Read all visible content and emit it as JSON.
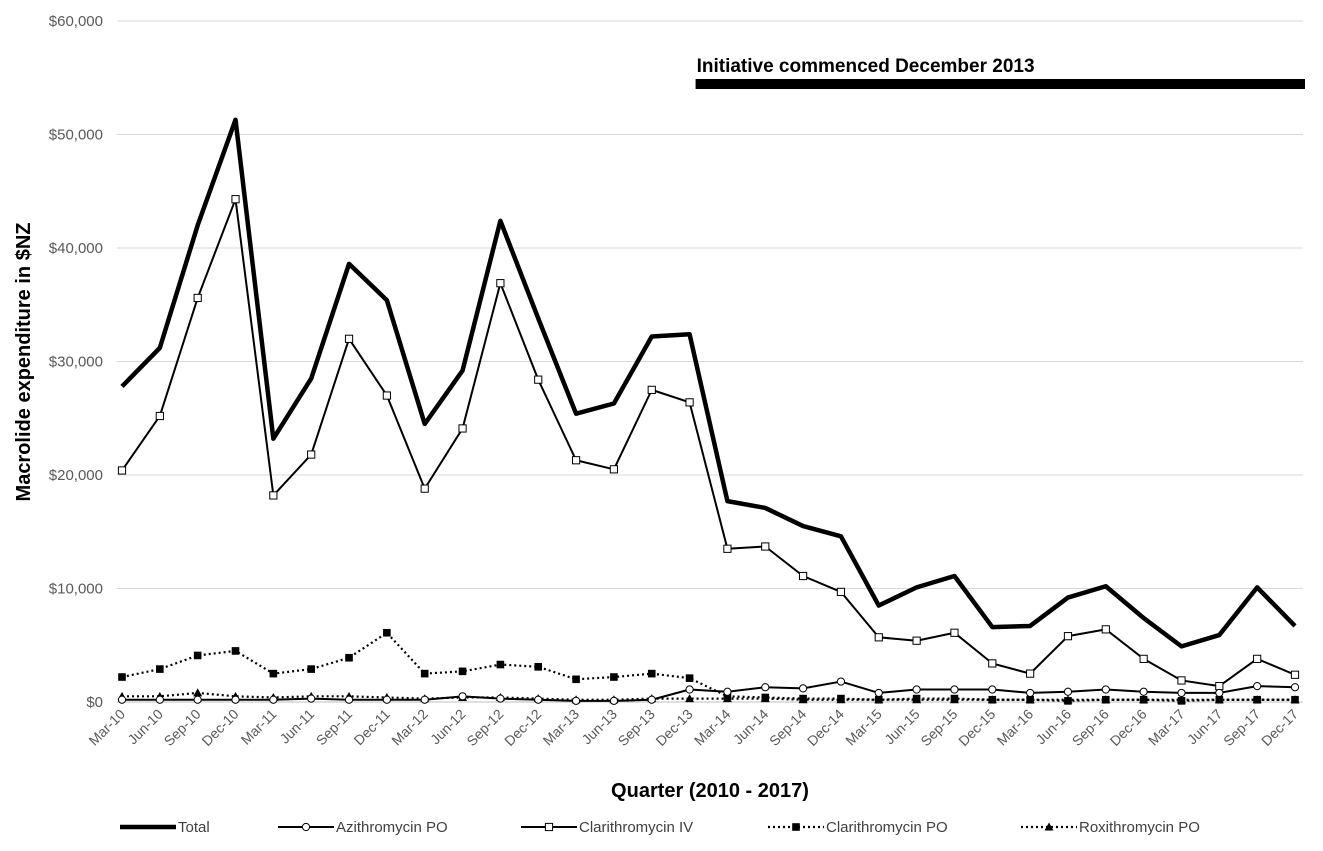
{
  "chart_data": {
    "type": "line",
    "title": "",
    "xlabel": "Quarter (2010 - 2017)",
    "ylabel": "Macrolide expenditure in $NZ",
    "ylim": [
      0,
      60000
    ],
    "yticks": [
      0,
      10000,
      20000,
      30000,
      40000,
      50000,
      60000
    ],
    "ytick_labels": [
      "$0",
      "$10,000",
      "$20,000",
      "$30,000",
      "$40,000",
      "$50,000",
      "$60,000"
    ],
    "grid": "horizontal",
    "legend_position": "bottom",
    "categories": [
      "Mar-10",
      "Jun-10",
      "Sep-10",
      "Dec-10",
      "Mar-11",
      "Jun-11",
      "Sep-11",
      "Dec-11",
      "Mar-12",
      "Jun-12",
      "Sep-12",
      "Dec-12",
      "Mar-13",
      "Jun-13",
      "Sep-13",
      "Dec-13",
      "Mar-14",
      "Jun-14",
      "Sep-14",
      "Dec-14",
      "Mar-15",
      "Jun-15",
      "Sep-15",
      "Dec-15",
      "Mar-16",
      "Jun-16",
      "Sep-16",
      "Dec-16",
      "Mar-17",
      "Jun-17",
      "Sep-17",
      "Dec-17"
    ],
    "series": [
      {
        "name": "Total",
        "style": "thick",
        "values": [
          27800,
          31200,
          42000,
          51300,
          23200,
          28500,
          38600,
          35400,
          24500,
          29200,
          42400,
          33800,
          25400,
          26300,
          32200,
          32400,
          17700,
          17100,
          15500,
          14600,
          8500,
          10100,
          11100,
          6600,
          6700,
          9200,
          10200,
          7400,
          4900,
          5900,
          10100,
          6700
        ]
      },
      {
        "name": "Azithromycin PO",
        "style": "circle",
        "values": [
          200,
          200,
          200,
          200,
          200,
          300,
          200,
          200,
          200,
          500,
          300,
          200,
          100,
          100,
          200,
          1100,
          900,
          1300,
          1200,
          1800,
          800,
          1100,
          1100,
          1100,
          800,
          900,
          1100,
          900,
          800,
          800,
          1400,
          1300
        ]
      },
      {
        "name": "Clarithromycin IV",
        "style": "square",
        "values": [
          20400,
          25200,
          35600,
          44300,
          18200,
          21800,
          32000,
          27000,
          18800,
          24100,
          36900,
          28400,
          21300,
          20500,
          27500,
          26400,
          13500,
          13700,
          11100,
          9700,
          5700,
          5400,
          6100,
          3400,
          2500,
          5800,
          6400,
          3800,
          1900,
          1400,
          3800,
          2400
        ]
      },
      {
        "name": "Clarithromycin PO",
        "style": "dotted-square",
        "values": [
          2200,
          2900,
          4100,
          4500,
          2500,
          2900,
          3900,
          6100,
          2500,
          2700,
          3300,
          3100,
          2000,
          2200,
          2500,
          2100,
          500,
          400,
          300,
          300,
          200,
          300,
          300,
          200,
          200,
          100,
          200,
          200,
          100,
          200,
          200,
          200
        ]
      },
      {
        "name": "Roxithromycin PO",
        "style": "dotted-triangle",
        "values": [
          500,
          500,
          800,
          500,
          400,
          500,
          500,
          400,
          300,
          400,
          400,
          300,
          200,
          200,
          300,
          300,
          300,
          300,
          200,
          200,
          200,
          200,
          200,
          200,
          200,
          200,
          200,
          200,
          200,
          200,
          200,
          200
        ]
      }
    ],
    "annotations": [
      {
        "text": "Initiative commenced December 2013",
        "from_category": "Dec-13",
        "to_category": "Dec-17"
      }
    ]
  }
}
